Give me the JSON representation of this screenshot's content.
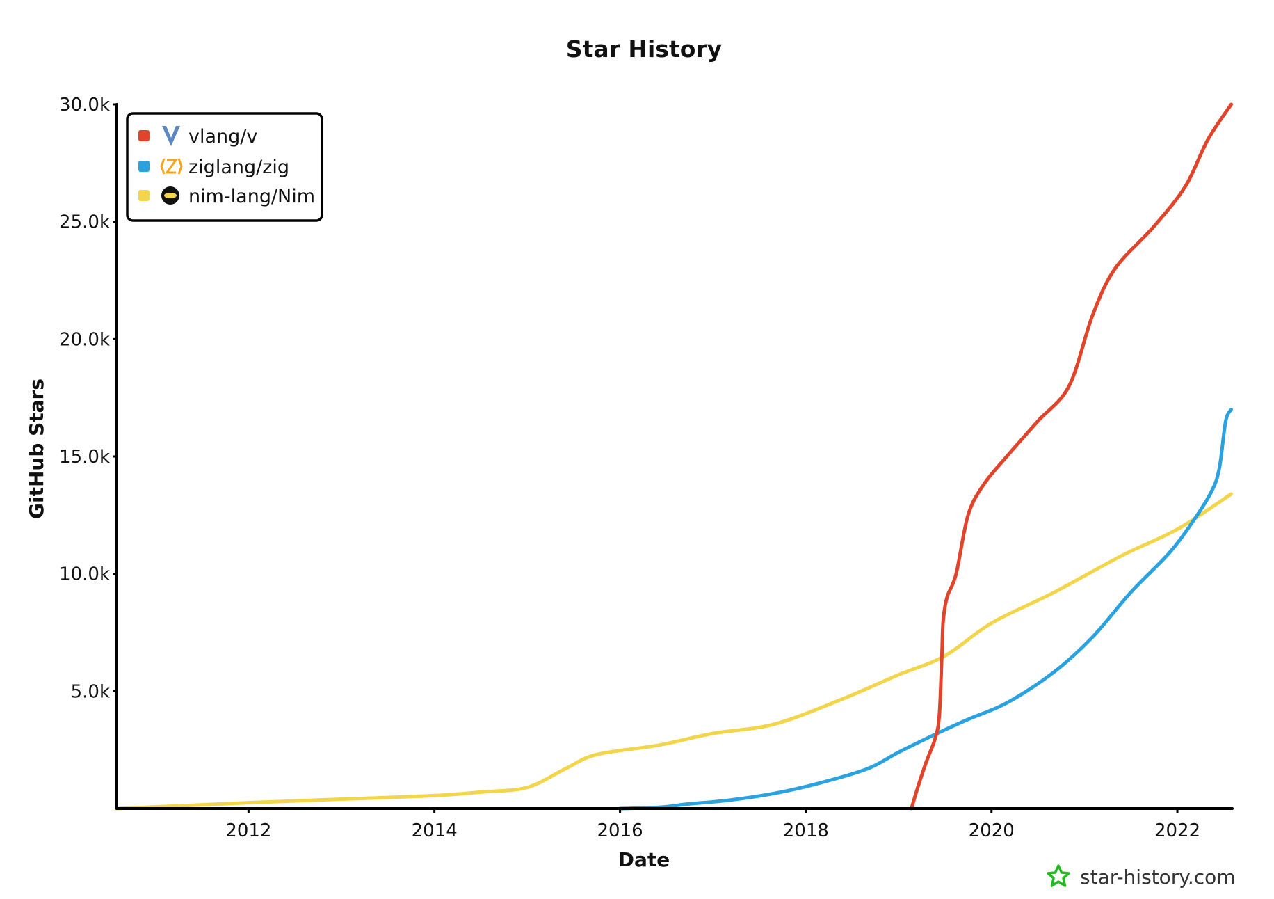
{
  "chart_data": {
    "type": "line",
    "title": "Star History",
    "xlabel": "Date",
    "ylabel": "GitHub Stars",
    "xlim": [
      "2010-08-01",
      "2022-08-05"
    ],
    "ylim": [
      0,
      30000
    ],
    "x_ticks": [
      "2012",
      "2014",
      "2016",
      "2018",
      "2020",
      "2022"
    ],
    "y_ticks": [
      "5.0k",
      "10.0k",
      "15.0k",
      "20.0k",
      "25.0k",
      "30.0k"
    ],
    "legend_position": "top-left",
    "grid": false,
    "series": [
      {
        "name": "vlang/v",
        "color": "#e0442a",
        "icon": "vlang-logo-icon",
        "x": [
          "2019-02-20",
          "2019-03-20",
          "2019-04-20",
          "2019-05-25",
          "2019-06-10",
          "2019-06-20",
          "2019-06-25",
          "2019-07-10",
          "2019-08-15",
          "2019-10-01",
          "2019-12-01",
          "2020-03-01",
          "2020-07-01",
          "2020-11-01",
          "2021-02-01",
          "2021-05-01",
          "2021-10-01",
          "2022-02-01",
          "2022-05-01",
          "2022-08-01"
        ],
        "values": [
          0,
          1000,
          2000,
          3000,
          4000,
          6600,
          8000,
          9000,
          10000,
          12500,
          13800,
          15000,
          16500,
          18000,
          21000,
          23000,
          24800,
          26500,
          28500,
          30000
        ]
      },
      {
        "name": "ziglang/zig",
        "color": "#2aa2e0",
        "icon": "zig-logo-icon",
        "x": [
          "2016-01-01",
          "2016-06-01",
          "2016-10-01",
          "2017-03-01",
          "2017-09-01",
          "2018-03-01",
          "2018-09-01",
          "2019-01-01",
          "2019-06-01",
          "2019-10-01",
          "2020-03-01",
          "2020-09-01",
          "2021-02-01",
          "2021-07-01",
          "2021-12-01",
          "2022-03-01",
          "2022-05-15",
          "2022-06-15",
          "2022-07-10",
          "2022-08-01"
        ],
        "values": [
          0,
          50,
          200,
          350,
          650,
          1100,
          1700,
          2400,
          3200,
          3800,
          4500,
          5800,
          7300,
          9200,
          10900,
          12200,
          13500,
          14500,
          16500,
          17000
        ]
      },
      {
        "name": "nim-lang/Nim",
        "color": "#f2d54a",
        "icon": "nim-logo-icon",
        "x": [
          "2010-08-01",
          "2011-03-01",
          "2012-01-01",
          "2013-01-01",
          "2014-01-01",
          "2014-07-01",
          "2015-01-01",
          "2015-06-01",
          "2015-10-01",
          "2016-06-01",
          "2017-01-01",
          "2017-09-01",
          "2018-06-01",
          "2019-01-01",
          "2019-07-01",
          "2020-01-01",
          "2020-09-01",
          "2021-06-01",
          "2022-01-01",
          "2022-08-01"
        ],
        "values": [
          0,
          100,
          250,
          400,
          550,
          700,
          900,
          1700,
          2300,
          2700,
          3200,
          3600,
          4700,
          5700,
          6500,
          7900,
          9200,
          10800,
          11900,
          13400
        ]
      }
    ]
  },
  "watermark": {
    "text": "star-history.com",
    "icon": "star-history-logo-icon",
    "color": "#22bb22"
  }
}
